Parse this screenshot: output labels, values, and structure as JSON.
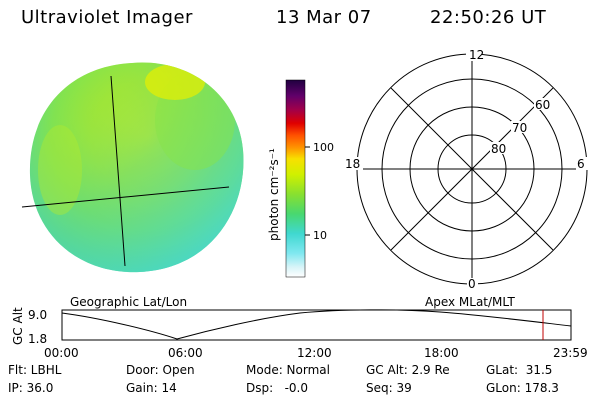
{
  "header": {
    "instrument": "Ultraviolet Imager",
    "date": "13 Mar 07",
    "time": "22:50:26 UT"
  },
  "colorbar": {
    "unit_label": "photon cm⁻²s⁻¹",
    "tick_labels": [
      "100",
      "10"
    ],
    "scale": "log"
  },
  "polar": {
    "mlt_labels": {
      "top": "12",
      "left": "18",
      "right": "6",
      "bottom": "0"
    },
    "lat_labels": [
      "60",
      "70",
      "80"
    ]
  },
  "panel_labels": {
    "left": "Geographic Lat/Lon",
    "right": "Apex MLat/MLT"
  },
  "timeline": {
    "ylabel": "GC Alt",
    "y_ticks": [
      "9.0",
      "1.8"
    ],
    "x_ticks": [
      "00:00",
      "06:00",
      "12:00",
      "18:00",
      "23:59"
    ],
    "cursor_time": "22:50",
    "cursor_color": "#c00000"
  },
  "status": {
    "row1": {
      "flt": "Flt: LBHL",
      "door": "Door: Open",
      "mode": "Mode: Normal",
      "gcalt": "GC Alt: 2.9 Re",
      "glat": "GLat:  31.5"
    },
    "row2": {
      "ip": "IP: 36.0",
      "gain": "Gain: 14",
      "dsp": "Dsp:   -0.0",
      "seq": "Seq: 39",
      "glon": "GLon: 178.3"
    }
  }
}
